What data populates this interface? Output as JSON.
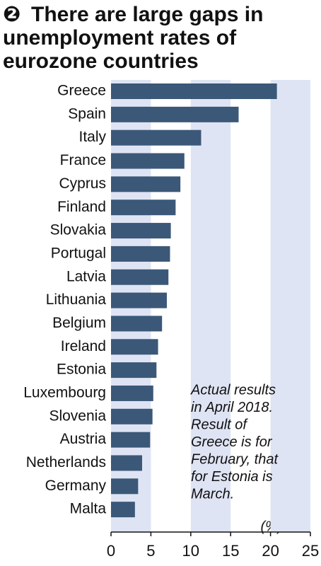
{
  "chart_data": {
    "type": "hbar",
    "title_marker": "❷",
    "title": [
      "There are large gaps in",
      "unemployment rates of",
      "eurozone countries"
    ],
    "categories": [
      "Greece",
      "Spain",
      "Italy",
      "France",
      "Cyprus",
      "Finland",
      "Slovakia",
      "Portugal",
      "Latvia",
      "Lithuania",
      "Belgium",
      "Ireland",
      "Estonia",
      "Luxembourg",
      "Slovenia",
      "Austria",
      "Netherlands",
      "Germany",
      "Malta"
    ],
    "values": [
      20.8,
      16.0,
      11.3,
      9.2,
      8.7,
      8.1,
      7.5,
      7.4,
      7.2,
      7.0,
      6.4,
      5.9,
      5.7,
      5.3,
      5.2,
      4.9,
      3.9,
      3.4,
      3.0
    ],
    "color": "#3b5878",
    "xlim": [
      0,
      25
    ],
    "xticks": [
      0,
      5,
      10,
      15,
      20,
      25
    ],
    "bands": true,
    "band_color": "#dfe4f4",
    "unit_label": "(%)",
    "annotation": [
      "Actual results",
      "in April 2018.",
      "Result of",
      "Greece is for",
      "February, that",
      "for Estonia is",
      "March."
    ]
  }
}
